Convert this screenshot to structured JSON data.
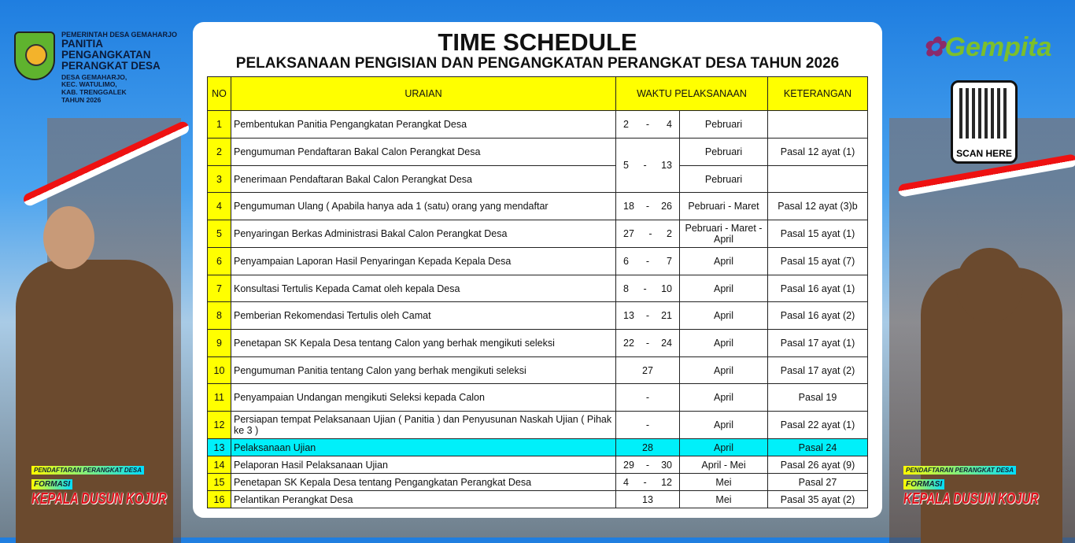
{
  "header": {
    "gov": "PEMERINTAH DESA GEMAHARJO",
    "committee": [
      "PANITIA",
      "PENGANGKATAN",
      "PERANGKAT DESA"
    ],
    "address": [
      "DESA GEMAHARJO,",
      "KEC. WATULIMO,",
      "KAB. TRENGGALEK",
      "TAHUN 2026"
    ]
  },
  "brand": {
    "logo_text": "Gempita",
    "qr_label": "SCAN HERE"
  },
  "badge": {
    "line1": "PENDAFTARAN PERANGKAT DESA",
    "line2": "FORMASI",
    "line3": "KEPALA DUSUN KOJUR"
  },
  "title": "TIME SCHEDULE",
  "subtitle": "PELAKSANAAN PENGISIAN DAN PENGANGKATAN PERANGKAT DESA TAHUN 2026",
  "table": {
    "headers": [
      "NO",
      "URAIAN",
      "WAKTU PELAKSANAAN",
      "KETERANGAN"
    ],
    "rows": [
      {
        "no": "1",
        "uraian": "Pembentukan Panitia Pengangkatan Perangkat Desa",
        "start": "2",
        "end": "4",
        "bulan": "Pebruari",
        "ket": ""
      },
      {
        "no": "2",
        "uraian": "Pengumuman Pendaftaran Bakal Calon Perangkat Desa",
        "start": "5",
        "end": "13",
        "bulan": "Pebruari",
        "ket": "Pasal 12 ayat (1)"
      },
      {
        "no": "3",
        "uraian": "Penerimaan Pendaftaran Bakal Calon Perangkat Desa",
        "bulan": "Pebruari",
        "ket": ""
      },
      {
        "no": "4",
        "uraian": "Pengumuman Ulang ( Apabila hanya ada 1 (satu) orang yang mendaftar",
        "start": "18",
        "end": "26",
        "bulan": "Pebruari - Maret",
        "ket": "Pasal 12 ayat (3)b"
      },
      {
        "no": "5",
        "uraian": "Penyaringan Berkas Administrasi Bakal Calon Perangkat Desa",
        "start": "27",
        "end": "2",
        "bulan": "Pebruari - Maret - April",
        "ket": "Pasal 15 ayat (1)"
      },
      {
        "no": "6",
        "uraian": "Penyampaian Laporan Hasil Penyaringan Kepada Kepala Desa",
        "start": "6",
        "end": "7",
        "bulan": "April",
        "ket": "Pasal 15 ayat (7)"
      },
      {
        "no": "7",
        "uraian": "Konsultasi Tertulis Kepada Camat oleh kepala Desa",
        "start": "8",
        "end": "10",
        "bulan": "April",
        "ket": "Pasal 16 ayat (1)"
      },
      {
        "no": "8",
        "uraian": "Pemberian Rekomendasi Tertulis oleh Camat",
        "start": "13",
        "end": "21",
        "bulan": "April",
        "ket": "Pasal 16 ayat (2)"
      },
      {
        "no": "9",
        "uraian": "Penetapan SK Kepala Desa tentang Calon yang berhak mengikuti seleksi",
        "start": "22",
        "end": "24",
        "bulan": "April",
        "ket": "Pasal 17 ayat (1)"
      },
      {
        "no": "10",
        "uraian": "Pengumuman Panitia tentang Calon yang berhak mengikuti seleksi",
        "single": "27",
        "bulan": "April",
        "ket": "Pasal 17 ayat (2)"
      },
      {
        "no": "11",
        "uraian": "Penyampaian Undangan mengikuti Seleksi kepada Calon",
        "single": "-",
        "bulan": "April",
        "ket": "Pasal 19"
      },
      {
        "no": "12",
        "uraian": "Persiapan tempat Pelaksanaan Ujian ( Panitia ) dan Penyusunan Naskah Ujian ( Pihak ke 3 )",
        "single": "-",
        "bulan": "April",
        "ket": "Pasal 22 ayat (1)"
      },
      {
        "no": "13",
        "uraian": "Pelaksanaan Ujian",
        "single": "28",
        "bulan": "April",
        "ket": "Pasal 24",
        "highlight": true
      },
      {
        "no": "14",
        "uraian": "Pelaporan Hasil Pelaksanaan Ujian",
        "start": "29",
        "end": "30",
        "bulan": "April - Mei",
        "ket": "Pasal 26 ayat (9)"
      },
      {
        "no": "15",
        "uraian": "Penetapan SK Kepala Desa tentang Pengangkatan Perangkat Desa",
        "start": "4",
        "end": "12",
        "bulan": "Mei",
        "ket": "Pasal 27"
      },
      {
        "no": "16",
        "uraian": "Pelantikan Perangkat Desa",
        "single": "13",
        "bulan": "Mei",
        "ket": "Pasal 35 ayat (2)"
      }
    ]
  },
  "colors": {
    "header_yellow": "#ffff00",
    "highlight_cyan": "#00f0fa"
  }
}
